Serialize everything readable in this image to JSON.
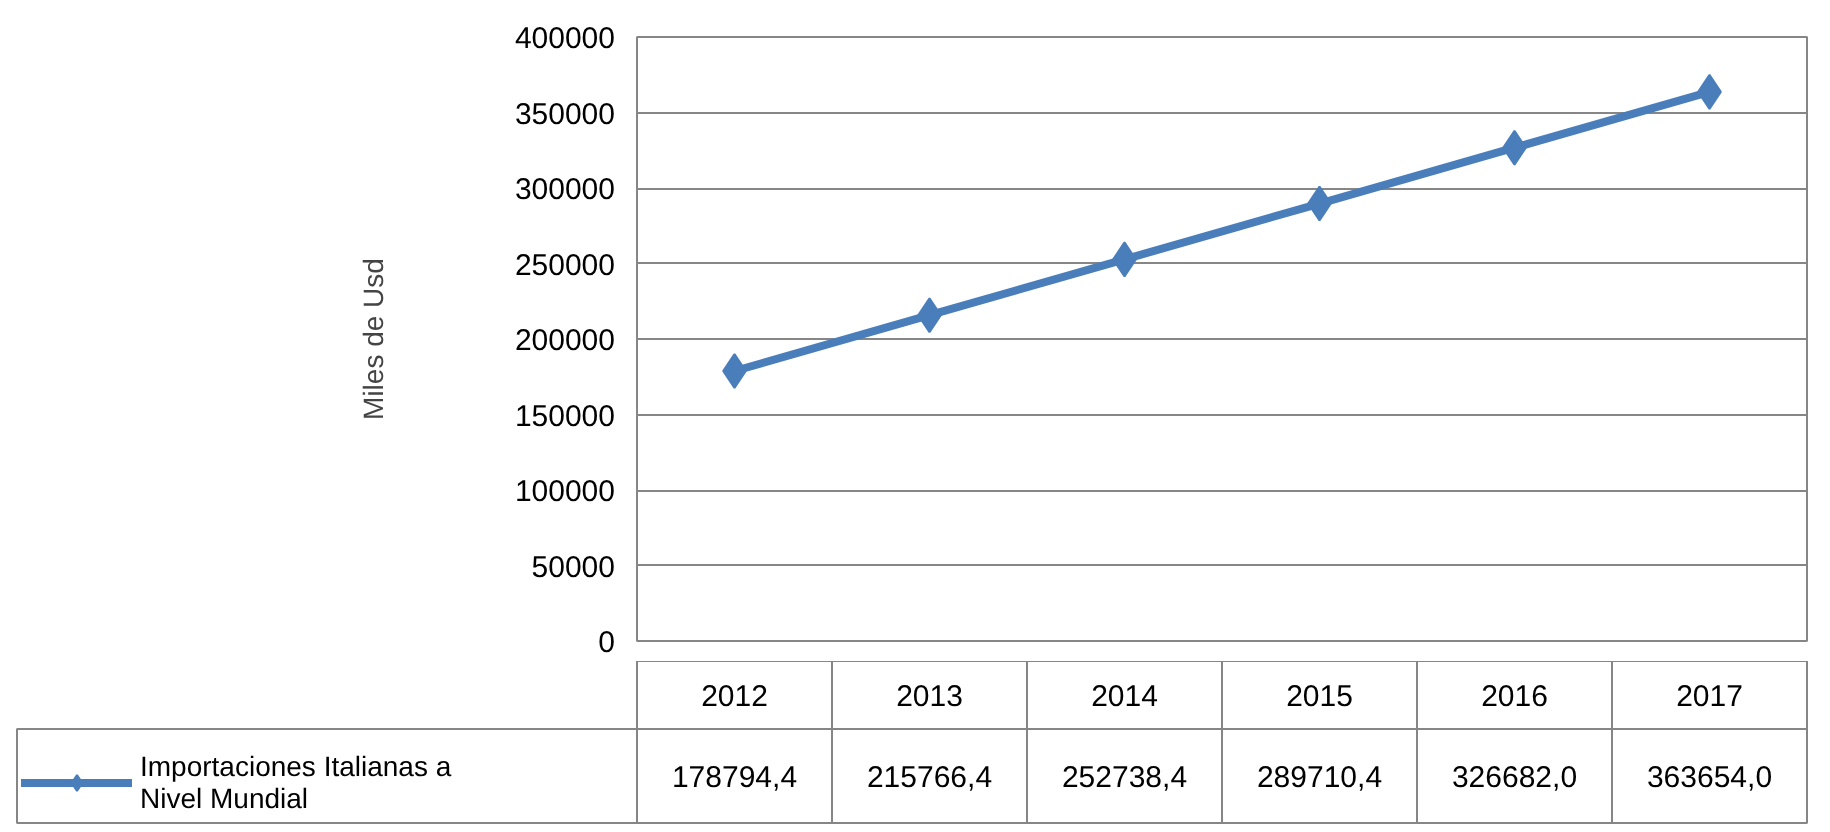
{
  "chart_data": {
    "type": "line",
    "ylabel": "Miles de Usd",
    "categories": [
      "2012",
      "2013",
      "2014",
      "2015",
      "2016",
      "2017"
    ],
    "series": [
      {
        "name": "Importaciones Italianas a Nivel Mundial",
        "color": "#4a7ebb",
        "values": [
          178794.4,
          215766.4,
          252738.4,
          289710.4,
          326682.0,
          363654.0
        ],
        "value_labels": [
          "178794,4",
          "215766,4",
          "252738,4",
          "289710,4",
          "326682,0",
          "363654,0"
        ]
      }
    ],
    "ylim": [
      0,
      400000
    ],
    "yticks": [
      0,
      50000,
      100000,
      150000,
      200000,
      250000,
      300000,
      350000,
      400000
    ],
    "grid": "y",
    "marker": "diamond",
    "line_style": "solid",
    "legend": "bottom"
  }
}
